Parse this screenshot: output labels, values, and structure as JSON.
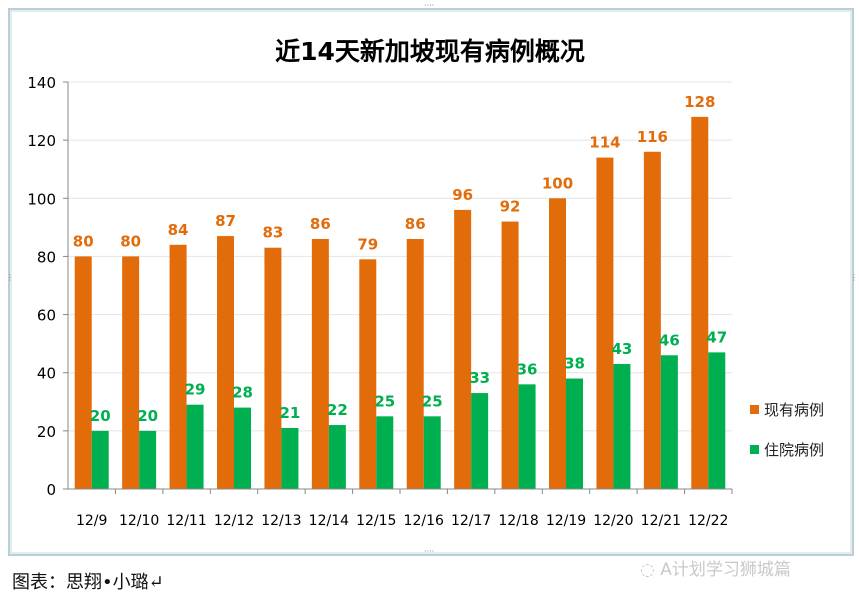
{
  "chart_data": {
    "type": "bar",
    "title": "近14天新加坡现有病例概况",
    "categories": [
      "12/9",
      "12/10",
      "12/11",
      "12/12",
      "12/13",
      "12/14",
      "12/15",
      "12/16",
      "12/17",
      "12/18",
      "12/19",
      "12/20",
      "12/21",
      "12/22"
    ],
    "series": [
      {
        "name": "现有病例",
        "color": "#e36c0a",
        "values": [
          80,
          80,
          84,
          87,
          83,
          86,
          79,
          86,
          96,
          92,
          100,
          114,
          116,
          128
        ]
      },
      {
        "name": "住院病例",
        "color": "#00b050",
        "values": [
          20,
          20,
          29,
          28,
          21,
          22,
          25,
          25,
          33,
          36,
          38,
          43,
          46,
          47
        ]
      }
    ],
    "ylim": [
      0,
      140
    ],
    "yticks": [
      "0",
      "20",
      "40",
      "60",
      "80",
      "100",
      "120",
      "140"
    ],
    "grid": true,
    "legend": "right"
  },
  "caption": "图表：思翔•小璐↵",
  "watermark": "A计划学习狮城篇"
}
